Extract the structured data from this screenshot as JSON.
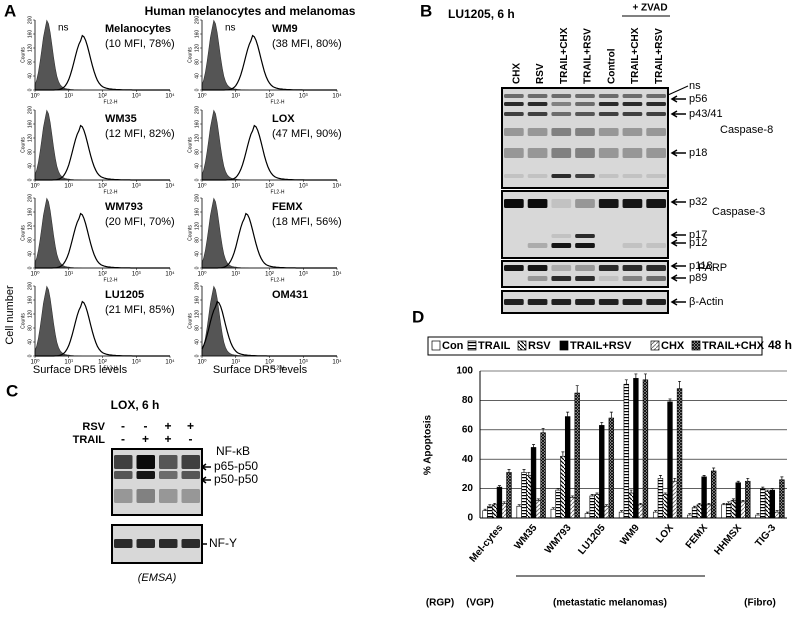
{
  "panel_a": {
    "letter": "A",
    "title": "Human melanocytes and melanomas",
    "y_label": "Cell number",
    "x_label": "Surface DR5 levels",
    "axis_y": "Counts",
    "axis_x": "FL2-H",
    "ns": "ns",
    "yticks": [
      0,
      40,
      80,
      120,
      160,
      200
    ],
    "xticks": [
      {
        "value": 0,
        "label": "10⁰"
      },
      {
        "value": 1,
        "label": "10¹"
      },
      {
        "value": 2,
        "label": "10²"
      },
      {
        "value": 3,
        "label": "10³"
      },
      {
        "value": 4,
        "label": "10⁴"
      }
    ],
    "histograms": [
      {
        "name": "Melanocytes",
        "stats": "(10 MFI, 78%)"
      },
      {
        "name": "WM9",
        "stats": "(38 MFI, 80%)"
      },
      {
        "name": "WM35",
        "stats": "(12 MFI, 82%)"
      },
      {
        "name": "LOX",
        "stats": "(47 MFI, 90%)"
      },
      {
        "name": "WM793",
        "stats": "(20 MFI, 70%)"
      },
      {
        "name": "FEMX",
        "stats": "(18 MFI, 56%)"
      },
      {
        "name": "LU1205",
        "stats": "(21 MFI, 85%)"
      },
      {
        "name": "OM431"
      }
    ]
  },
  "panel_b": {
    "letter": "B",
    "title": "LU1205, 6 h",
    "zvad": "+ ZVAD",
    "lanes": [
      "CHX",
      "RSV",
      "TRAIL+CHX",
      "TRAIL+RSV",
      "Control",
      "TRAIL+CHX",
      "TRAIL+RSV"
    ],
    "bands": [
      "ns",
      "p56",
      "p43/41",
      "p18",
      "p32",
      "p17",
      "p12",
      "p118",
      "p89",
      "β-Actin"
    ],
    "proteins": [
      "Caspase-8",
      "Caspase-3",
      "PARP"
    ]
  },
  "panel_c": {
    "letter": "C",
    "title": "LOX, 6 h",
    "rows": [
      {
        "name": "RSV",
        "signs": [
          "-",
          "-",
          "+",
          "+"
        ]
      },
      {
        "name": "TRAIL",
        "signs": [
          "-",
          "+",
          "+",
          "-"
        ]
      }
    ],
    "labels": [
      "NF-κB",
      "p65-p50",
      "p50-p50",
      "NF-Y"
    ],
    "note": "(EMSA)"
  },
  "chart_data": {
    "type": "bar",
    "letter": "D",
    "y_label": "% Apoptosis",
    "time": "48 h",
    "categories": [
      "Mel-cytes",
      "WM35",
      "WM793",
      "LU1205",
      "WM9",
      "LOX",
      "FEMX",
      "HHMSX",
      "TIG-3"
    ],
    "series": [
      {
        "name": "Con",
        "pattern": "white",
        "values": [
          5,
          8,
          6,
          3,
          4,
          4,
          2,
          9,
          2
        ],
        "errors": [
          1,
          1,
          1,
          1,
          1,
          1,
          1,
          1,
          1
        ]
      },
      {
        "name": "TRAIL",
        "pattern": "hstripe",
        "values": [
          8,
          31,
          19,
          15,
          91,
          27,
          7,
          10,
          20
        ],
        "errors": [
          1,
          2,
          1,
          1,
          3,
          2,
          1,
          1,
          1
        ]
      },
      {
        "name": "RSV",
        "pattern": "bdiag",
        "values": [
          9,
          29,
          42,
          16,
          17,
          16,
          9,
          12,
          18
        ],
        "errors": [
          1,
          2,
          3,
          1,
          2,
          1,
          1,
          1,
          1
        ]
      },
      {
        "name": "TRAIL+RSV",
        "pattern": "black",
        "values": [
          21,
          48,
          69,
          63,
          95,
          79,
          28,
          24,
          19
        ],
        "errors": [
          1,
          2,
          3,
          2,
          3,
          2,
          1,
          1,
          1
        ]
      },
      {
        "name": "CHX",
        "pattern": "fdiag",
        "values": [
          10,
          12,
          14,
          8,
          9,
          25,
          9,
          11,
          4
        ],
        "errors": [
          1,
          1,
          1,
          1,
          1,
          2,
          1,
          1,
          1
        ]
      },
      {
        "name": "TRAIL+CHX",
        "pattern": "cross",
        "values": [
          31,
          58,
          85,
          68,
          94,
          88,
          32,
          25,
          26
        ],
        "errors": [
          2,
          3,
          5,
          4,
          4,
          5,
          2,
          2,
          2
        ]
      }
    ],
    "ylim": [
      0,
      100
    ],
    "yticks": [
      0,
      20,
      40,
      60,
      80,
      100
    ],
    "grid": true,
    "groups": [
      "(RGP)",
      "(VGP)",
      "(metastatic melanomas)",
      "(Fibro)"
    ]
  }
}
